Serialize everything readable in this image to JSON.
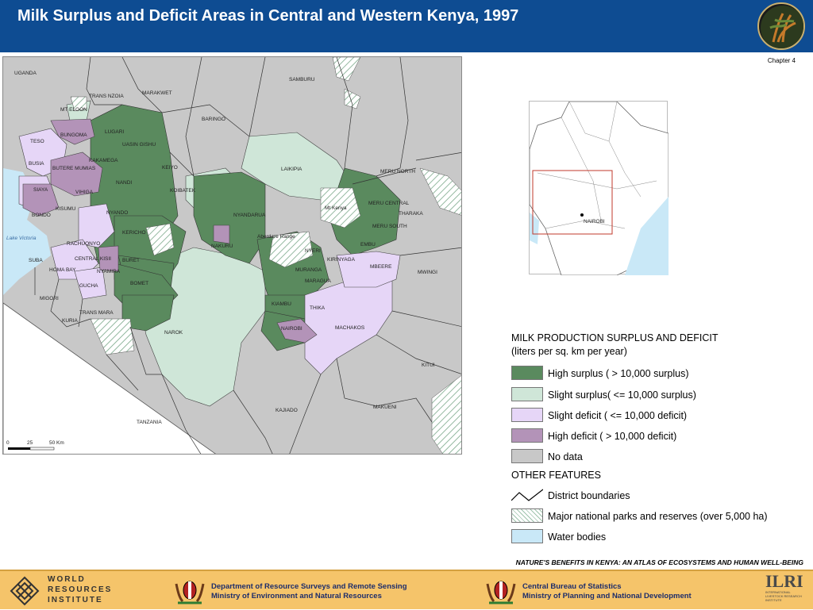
{
  "header": {
    "title": "Milk Surplus and Deficit Areas in Central and Western Kenya, 1997",
    "chapter": "Chapter 4"
  },
  "map": {
    "country_labels": [
      "UGANDA",
      "TANZANIA"
    ],
    "water_labels": [
      "Lake Victoria"
    ],
    "district_labels": [
      "SAMBURU",
      "TRANS NZOIA",
      "MARAKWET",
      "MT ELGON",
      "BARINGO",
      "BUNGOMA",
      "LUGARI",
      "UASIN GISHU",
      "TESO",
      "KAKAMEGA",
      "BUSIA",
      "BUTERE MUMIAS",
      "KEIYO",
      "LAIKIPIA",
      "MERU NORTH",
      "NANDI",
      "SIAYA",
      "VIHIGA",
      "KOIBATEK",
      "MERU CENTRAL",
      "THARAKA",
      "KISUMU",
      "BONDO",
      "NYANDO",
      "NYANDARUA",
      "Mt Kenya",
      "KERICHO",
      "MERU SOUTH",
      "Aberdare Range",
      "RACHUONYO",
      "NAKURU",
      "EMBU",
      "NYERI",
      "SUBA",
      "CENTRAL KISII",
      "HOMA BAY",
      "BURET",
      "KIRINYAGA",
      "MBEERE",
      "MWINGI",
      "NYAMIRA",
      "MURANGA",
      "GUCHA",
      "BOMET",
      "MARAGUA",
      "MIGORI",
      "KIAMBU",
      "THIKA",
      "TRANS MARA",
      "KURIA",
      "NAROK",
      "NAIROBI",
      "MACHAKOS",
      "KITUI",
      "KAJIADO",
      "MAKUENI"
    ],
    "scale_labels": [
      "0",
      "25",
      "50 Km"
    ]
  },
  "inset": {
    "label": "NAIROBI"
  },
  "legend": {
    "title": "MILK PRODUCTION SURPLUS AND DEFICIT",
    "subtitle": "(liters per sq. km per year)",
    "items": [
      {
        "label": "High surplus ( > 10,000 surplus)",
        "color": "#5a8a5e"
      },
      {
        "label": "Slight surplus( <= 10,000 surplus)",
        "color": "#cfe6d8"
      },
      {
        "label": "Slight deficit ( <= 10,000 deficit)",
        "color": "#e6d6f7"
      },
      {
        "label": "High deficit ( > 10,000 deficit)",
        "color": "#b393b8"
      },
      {
        "label": "No data",
        "color": "#c8c8c8"
      }
    ],
    "other_title": "OTHER FEATURES",
    "other_items": [
      {
        "label": "District boundaries",
        "icon": "line-icon"
      },
      {
        "label": "Major national parks and reserves (over 5,000 ha)",
        "icon": "hatch-icon"
      },
      {
        "label": "Water bodies",
        "color": "#c9e8f7"
      }
    ]
  },
  "footer": {
    "tagline": "NATURE'S BENEFITS IN KENYA: AN ATLAS OF ECOSYSTEMS AND HUMAN WELL-BEING",
    "wri": [
      "WORLD",
      "RESOURCES",
      "INSTITUTE"
    ],
    "dept1": [
      "Department of Resource Surveys and Remote Sensing",
      "Ministry of Environment and Natural Resources"
    ],
    "dept2": [
      "Central Bureau of Statistics",
      "Ministry of Planning and National Development"
    ],
    "ilri": "ILRI",
    "ilri_sub": [
      "INTERNATIONAL",
      "LIVESTOCK RESEARCH",
      "INSTITUTE"
    ]
  }
}
